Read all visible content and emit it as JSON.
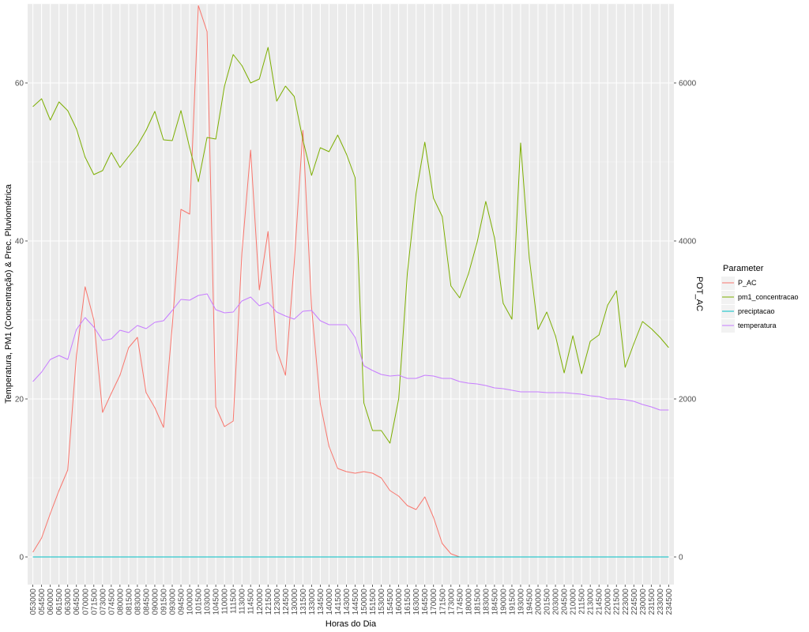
{
  "chart_data": {
    "type": "line",
    "xlabel": "Horas do Dia",
    "ylabel_left": "Temperatura, PM1 (Concentração) & Prec. Pluviométrica",
    "ylabel_right": "POT_AC",
    "ylim_left": [
      -3.5,
      70
    ],
    "ylim_right": [
      -350,
      7000
    ],
    "yticks_left": [
      0,
      20,
      40,
      60
    ],
    "yticks_right": [
      0,
      2000,
      4000,
      6000
    ],
    "grid": true,
    "legend_position": "right",
    "legend_title": "Parameter",
    "categories": [
      "053000",
      "054500",
      "060000",
      "061500",
      "063000",
      "064500",
      "070000",
      "071500",
      "073000",
      "074500",
      "080000",
      "081500",
      "083000",
      "084500",
      "090000",
      "091500",
      "093000",
      "094500",
      "100000",
      "101500",
      "103000",
      "104500",
      "110000",
      "111500",
      "113000",
      "114500",
      "120000",
      "121500",
      "123000",
      "124500",
      "130000",
      "131500",
      "133000",
      "134500",
      "140000",
      "141500",
      "143000",
      "144500",
      "150000",
      "151500",
      "153000",
      "154500",
      "160000",
      "161500",
      "163000",
      "164500",
      "170000",
      "171500",
      "173000",
      "174500",
      "180000",
      "181500",
      "183000",
      "184500",
      "190000",
      "191500",
      "193000",
      "194500",
      "200000",
      "201500",
      "203000",
      "204500",
      "210000",
      "211500",
      "213000",
      "214500",
      "220000",
      "221500",
      "223000",
      "224500",
      "230000",
      "231500",
      "233000",
      "234500"
    ],
    "series": [
      {
        "name": "P_AC",
        "color": "#F8766D",
        "axis": "right",
        "values": [
          60,
          240,
          550,
          840,
          1100,
          2550,
          3420,
          3000,
          1830,
          2070,
          2300,
          2650,
          2780,
          2080,
          1890,
          1640,
          2920,
          4400,
          4340,
          6980,
          6650,
          1900,
          1650,
          1720,
          3850,
          5150,
          3380,
          4120,
          2620,
          2300,
          3710,
          5400,
          3160,
          1940,
          1400,
          1120,
          1080,
          1060,
          1080,
          1060,
          1000,
          840,
          770,
          650,
          600,
          760,
          500,
          170,
          40,
          0,
          0,
          0,
          0,
          0,
          0,
          0,
          0,
          0,
          0,
          0,
          0,
          0,
          0,
          0,
          0,
          0,
          0,
          0,
          0,
          0,
          0,
          0,
          0,
          0
        ]
      },
      {
        "name": "pm1_concentracao",
        "color": "#7CAE00",
        "axis": "left",
        "values": [
          57.0,
          58.0,
          55.3,
          57.6,
          56.5,
          54.2,
          50.6,
          48.4,
          48.9,
          51.2,
          49.3,
          50.7,
          52.1,
          54.0,
          56.4,
          52.8,
          52.7,
          56.5,
          51.8,
          47.5,
          53.1,
          52.9,
          59.6,
          63.6,
          62.2,
          60.0,
          60.5,
          64.5,
          57.7,
          59.6,
          58.3,
          52.8,
          48.3,
          51.8,
          51.3,
          53.4,
          51.0,
          48.0,
          19.5,
          16.0,
          16.0,
          14.4,
          20.0,
          36.0,
          46.0,
          52.5,
          45.4,
          43.1,
          34.3,
          32.8,
          35.8,
          39.8,
          45.0,
          40.4,
          32.1,
          30.1,
          52.4,
          37.8,
          28.8,
          31.0,
          28.0,
          23.3,
          28.0,
          23.2,
          27.3,
          28.1,
          31.9,
          33.7,
          24.0,
          27.0,
          29.8,
          28.9,
          27.8,
          26.5
        ]
      },
      {
        "name": "preciptacao",
        "color": "#00BFC4",
        "axis": "left",
        "values": [
          0,
          0,
          0,
          0,
          0,
          0,
          0,
          0,
          0,
          0,
          0,
          0,
          0,
          0,
          0,
          0,
          0,
          0,
          0,
          0,
          0,
          0,
          0,
          0,
          0,
          0,
          0,
          0,
          0,
          0,
          0,
          0,
          0,
          0,
          0,
          0,
          0,
          0,
          0,
          0,
          0,
          0,
          0,
          0,
          0,
          0,
          0,
          0,
          0,
          0,
          0,
          0,
          0,
          0,
          0,
          0,
          0,
          0,
          0,
          0,
          0,
          0,
          0,
          0,
          0,
          0,
          0,
          0,
          0,
          0,
          0,
          0,
          0,
          0
        ]
      },
      {
        "name": "temperatura",
        "color": "#C77CFF",
        "axis": "left",
        "values": [
          22.2,
          23.4,
          25.0,
          25.5,
          25.0,
          28.8,
          30.3,
          29.1,
          27.4,
          27.6,
          28.7,
          28.4,
          29.3,
          28.9,
          29.7,
          29.9,
          31.2,
          32.6,
          32.5,
          33.1,
          33.3,
          31.3,
          30.9,
          31.0,
          32.4,
          32.9,
          31.8,
          32.2,
          31.0,
          30.5,
          30.1,
          31.1,
          31.2,
          29.9,
          29.4,
          29.4,
          29.4,
          27.8,
          24.2,
          23.6,
          23.1,
          22.9,
          23.0,
          22.6,
          22.6,
          23.0,
          22.9,
          22.6,
          22.6,
          22.2,
          22.0,
          21.9,
          21.7,
          21.4,
          21.3,
          21.1,
          20.9,
          20.9,
          20.9,
          20.8,
          20.8,
          20.8,
          20.7,
          20.6,
          20.4,
          20.3,
          20.0,
          20.0,
          19.9,
          19.7,
          19.3,
          19.0,
          18.6,
          18.6
        ]
      }
    ]
  },
  "colors": {
    "panel": "#EBEBEB",
    "grid_major": "#FFFFFF",
    "tick_text": "#4D4D4D"
  }
}
